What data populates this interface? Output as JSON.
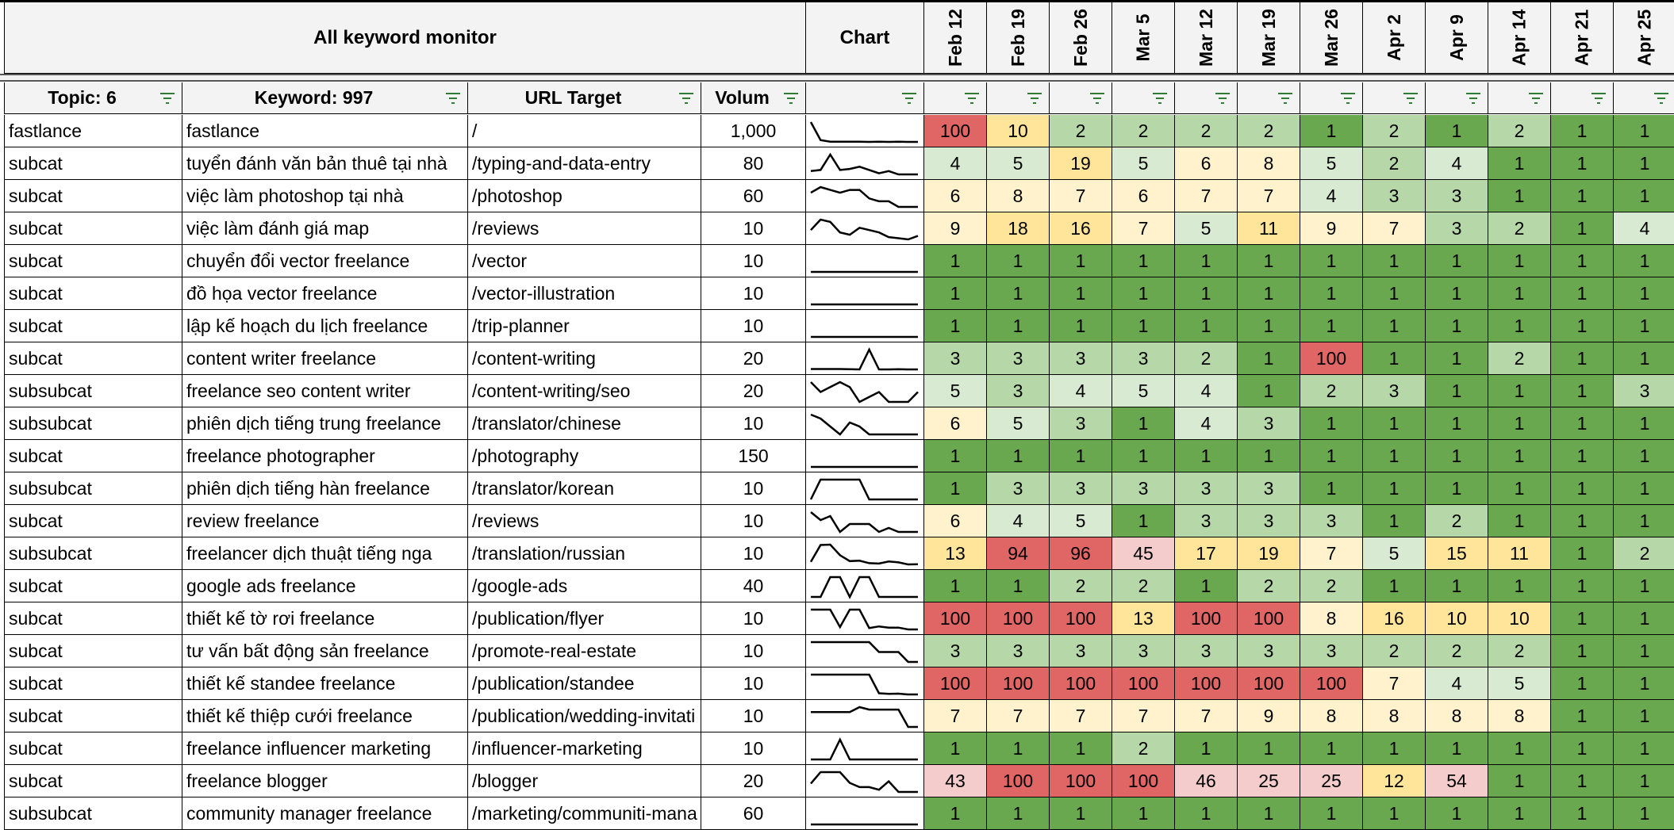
{
  "header": {
    "title": "All keyword monitor",
    "chart_label": "Chart",
    "dates": [
      "Feb 12",
      "Feb 19",
      "Feb 26",
      "Mar 5",
      "Mar 12",
      "Mar 19",
      "Mar 26",
      "Apr 2",
      "Apr 9",
      "Apr 14",
      "Apr 21",
      "Apr 25"
    ]
  },
  "columns": {
    "topic": "Topic: 6",
    "keyword": "Keyword: 997",
    "url": "URL Target",
    "volume": "Volum"
  },
  "icons": {
    "filter": "filter-icon"
  },
  "colors": {
    "rank_1": "#6aa84f",
    "rank_2_3": "#b6d7a8",
    "rank_4_5": "#d9ead3",
    "rank_6_9": "#fff2cc",
    "rank_10_19": "#ffe599",
    "rank_20_59": "#f4cccc",
    "rank_60_up": "#e06666",
    "sparkline": "#000000",
    "header_bg": "#f3f3f3"
  },
  "rows": [
    {
      "topic": "fastlance",
      "keyword": "fastlance",
      "url": "/",
      "volume": "1,000",
      "ranks": [
        100,
        10,
        2,
        2,
        2,
        2,
        1,
        2,
        1,
        2,
        1,
        1
      ]
    },
    {
      "topic": "subcat",
      "keyword": "tuyển đánh văn bản thuê tại nhà",
      "url": "/typing-and-data-entry",
      "volume": "80",
      "ranks": [
        4,
        5,
        19,
        5,
        6,
        8,
        5,
        2,
        4,
        1,
        1,
        1
      ]
    },
    {
      "topic": "subcat",
      "keyword": "việc làm photoshop tại nhà",
      "url": "/photoshop",
      "volume": "60",
      "ranks": [
        6,
        8,
        7,
        6,
        7,
        7,
        4,
        3,
        3,
        1,
        1,
        1
      ]
    },
    {
      "topic": "subcat",
      "keyword": "việc làm đánh giá map",
      "url": "/reviews",
      "volume": "10",
      "ranks": [
        9,
        18,
        16,
        7,
        5,
        11,
        9,
        7,
        3,
        2,
        1,
        4
      ]
    },
    {
      "topic": "subcat",
      "keyword": "chuyển đổi vector freelance",
      "url": "/vector",
      "volume": "10",
      "ranks": [
        1,
        1,
        1,
        1,
        1,
        1,
        1,
        1,
        1,
        1,
        1,
        1
      ]
    },
    {
      "topic": "subcat",
      "keyword": "đồ họa vector freelance",
      "url": "/vector-illustration",
      "volume": "10",
      "ranks": [
        1,
        1,
        1,
        1,
        1,
        1,
        1,
        1,
        1,
        1,
        1,
        1
      ]
    },
    {
      "topic": "subcat",
      "keyword": "lập kế hoạch du lịch freelance",
      "url": "/trip-planner",
      "volume": "10",
      "ranks": [
        1,
        1,
        1,
        1,
        1,
        1,
        1,
        1,
        1,
        1,
        1,
        1
      ]
    },
    {
      "topic": "subcat",
      "keyword": "content writer freelance",
      "url": "/content-writing",
      "volume": "20",
      "ranks": [
        3,
        3,
        3,
        3,
        2,
        1,
        100,
        1,
        1,
        2,
        1,
        1
      ]
    },
    {
      "topic": "subsubcat",
      "keyword": "freelance seo content writer",
      "url": "/content-writing/seo",
      "volume": "20",
      "ranks": [
        5,
        3,
        4,
        5,
        4,
        1,
        2,
        3,
        1,
        1,
        1,
        3
      ]
    },
    {
      "topic": "subsubcat",
      "keyword": "phiên dịch tiếng trung freelance",
      "url": "/translator/chinese",
      "volume": "10",
      "ranks": [
        6,
        5,
        3,
        1,
        4,
        3,
        1,
        1,
        1,
        1,
        1,
        1
      ]
    },
    {
      "topic": "subcat",
      "keyword": "freelance photographer",
      "url": "/photography",
      "volume": "150",
      "ranks": [
        1,
        1,
        1,
        1,
        1,
        1,
        1,
        1,
        1,
        1,
        1,
        1
      ]
    },
    {
      "topic": "subsubcat",
      "keyword": "phiên dịch tiếng hàn freelance",
      "url": "/translator/korean",
      "volume": "10",
      "ranks": [
        1,
        3,
        3,
        3,
        3,
        3,
        1,
        1,
        1,
        1,
        1,
        1
      ]
    },
    {
      "topic": "subcat",
      "keyword": "review freelance",
      "url": "/reviews",
      "volume": "10",
      "ranks": [
        6,
        4,
        5,
        1,
        3,
        3,
        3,
        1,
        2,
        1,
        1,
        1
      ]
    },
    {
      "topic": "subsubcat",
      "keyword": "freelancer dịch thuật tiếng nga",
      "url": "/translation/russian",
      "volume": "10",
      "ranks": [
        13,
        94,
        96,
        45,
        17,
        19,
        7,
        5,
        15,
        11,
        1,
        2
      ]
    },
    {
      "topic": "subcat",
      "keyword": "google ads freelance",
      "url": "/google-ads",
      "volume": "40",
      "ranks": [
        1,
        1,
        2,
        2,
        1,
        2,
        2,
        1,
        1,
        1,
        1,
        1
      ]
    },
    {
      "topic": "subcat",
      "keyword": "thiết kế tờ rơi freelance",
      "url": "/publication/flyer",
      "volume": "10",
      "ranks": [
        100,
        100,
        100,
        13,
        100,
        100,
        8,
        16,
        10,
        10,
        1,
        1
      ]
    },
    {
      "topic": "subcat",
      "keyword": "tư vấn bất động sản freelance",
      "url": "/promote-real-estate",
      "volume": "10",
      "ranks": [
        3,
        3,
        3,
        3,
        3,
        3,
        3,
        2,
        2,
        2,
        1,
        1
      ]
    },
    {
      "topic": "subcat",
      "keyword": "thiết kế standee freelance",
      "url": "/publication/standee",
      "volume": "10",
      "ranks": [
        100,
        100,
        100,
        100,
        100,
        100,
        100,
        7,
        4,
        5,
        1,
        1
      ]
    },
    {
      "topic": "subcat",
      "keyword": "thiết kế thiệp cưới freelance",
      "url": "/publication/wedding-invitati",
      "volume": "10",
      "ranks": [
        7,
        7,
        7,
        7,
        7,
        9,
        8,
        8,
        8,
        8,
        1,
        1
      ]
    },
    {
      "topic": "subcat",
      "keyword": "freelance influencer marketing",
      "url": "/influencer-marketing",
      "volume": "10",
      "ranks": [
        1,
        1,
        1,
        2,
        1,
        1,
        1,
        1,
        1,
        1,
        1,
        1
      ]
    },
    {
      "topic": "subcat",
      "keyword": "freelance blogger",
      "url": "/blogger",
      "volume": "20",
      "ranks": [
        43,
        100,
        100,
        100,
        46,
        25,
        25,
        12,
        54,
        1,
        1,
        1
      ]
    },
    {
      "topic": "subsubcat",
      "keyword": "community manager freelance",
      "url": "/marketing/communiti-mana",
      "volume": "60",
      "ranks": [
        1,
        1,
        1,
        1,
        1,
        1,
        1,
        1,
        1,
        1,
        1,
        1
      ]
    }
  ]
}
